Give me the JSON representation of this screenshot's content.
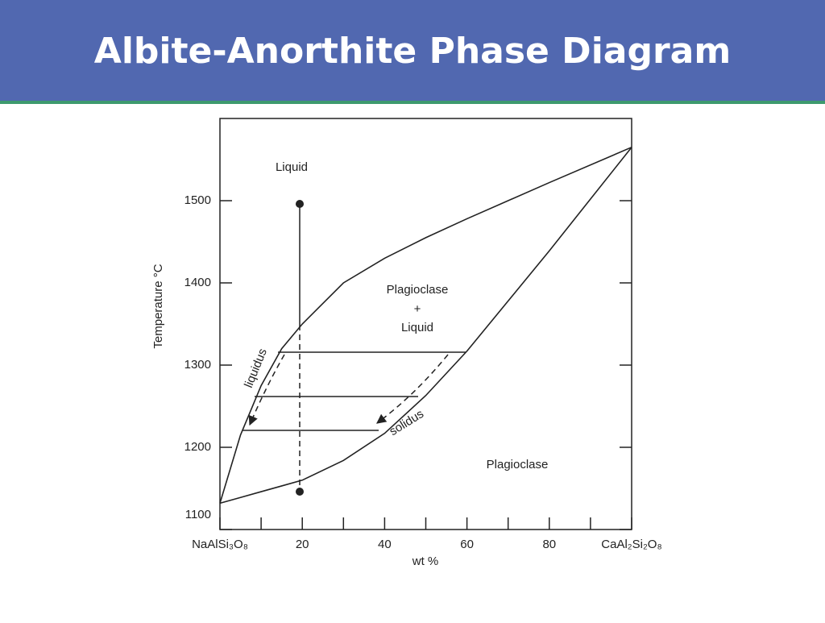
{
  "chart_data": {
    "type": "line",
    "title": "Albite-Anorthite Phase Diagram",
    "y_label": "Temperature °C",
    "x_label": "wt %",
    "x": [
      0,
      5,
      10,
      15,
      20,
      30,
      40,
      50,
      60,
      80,
      100
    ],
    "series": [
      {
        "color": "#222222",
        "values": [
          1132,
          1215,
          1275,
          1320,
          1350,
          1400,
          1430,
          1455,
          1478,
          1522,
          1565
        ]
      },
      {
        "color": "#222222",
        "values": [
          1132,
          1139,
          1146,
          1153,
          1160,
          1184,
          1217,
          1263,
          1317,
          1439,
          1565
        ]
      }
    ],
    "annotations": [
      "Liquid",
      "Plagioclase",
      "+",
      "Liquid",
      "Plagioclase",
      "liquidus",
      "solidus"
    ],
    "xlim": [
      0,
      100
    ],
    "ylim": [
      1100,
      1600
    ],
    "xticks": [
      {
        "value": 0,
        "label": "NaAlSi₃O₈"
      },
      20,
      40,
      60,
      80,
      {
        "value": 100,
        "label": "CaAl₂Si₂O₈"
      }
    ],
    "xminorticks": [
      10,
      30,
      50,
      70,
      90
    ],
    "yticks": [
      1100,
      1200,
      1300,
      1400,
      1500
    ]
  }
}
